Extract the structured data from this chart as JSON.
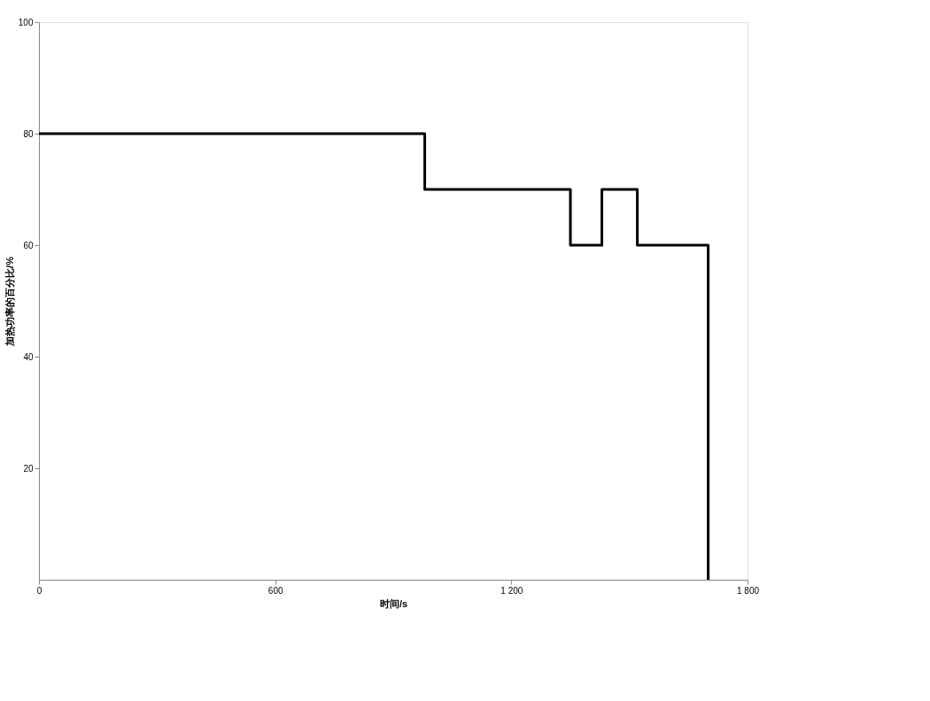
{
  "chart_data": {
    "type": "step",
    "xlabel": "时间/s",
    "ylabel": "加热功率的百分比/%",
    "x": [
      0,
      980,
      1350,
      1430,
      1520,
      1700
    ],
    "values": [
      80,
      70,
      60,
      70,
      60,
      0
    ],
    "color": "#000000",
    "xlim": [
      0,
      1800
    ],
    "xticks": [
      0,
      600,
      {
        "value": 1200,
        "label": "1 200"
      },
      {
        "value": 1800,
        "label": "1 800"
      }
    ],
    "ylim": [
      0,
      100
    ],
    "yticks": [
      20,
      40,
      60,
      80,
      100
    ],
    "grid": false,
    "marker": "none",
    "line_style": "solid"
  }
}
